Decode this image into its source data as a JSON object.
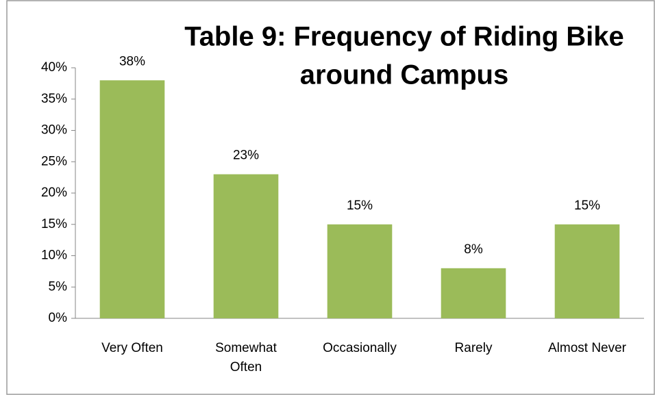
{
  "chart_data": {
    "type": "bar",
    "title": [
      "Table 9: Frequency of Riding Bike",
      "around Campus"
    ],
    "categories": [
      "Very Often",
      "Somewhat Often",
      "Occasionally",
      "Rarely",
      "Almost Never"
    ],
    "values": [
      38,
      23,
      15,
      8,
      15
    ],
    "value_labels": [
      "38%",
      "23%",
      "15%",
      "8%",
      "15%"
    ],
    "color": "#9bbb59",
    "ylim": [
      0,
      40
    ],
    "yticks": [
      {
        "value": 0,
        "label": "0%"
      },
      {
        "value": 5,
        "label": "5%"
      },
      {
        "value": 10,
        "label": "10%"
      },
      {
        "value": 15,
        "label": "15%"
      },
      {
        "value": 20,
        "label": "20%"
      },
      {
        "value": 25,
        "label": "25%"
      },
      {
        "value": 30,
        "label": "30%"
      },
      {
        "value": 35,
        "label": "35%"
      },
      {
        "value": 40,
        "label": "40%"
      }
    ],
    "grid": false
  }
}
